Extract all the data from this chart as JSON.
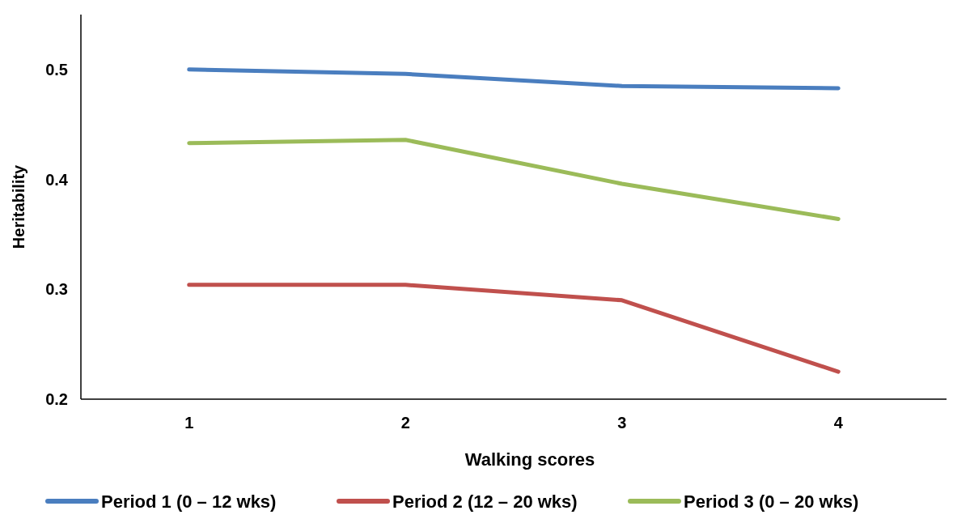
{
  "chart_data": {
    "type": "line",
    "xlabel": "Walking scores",
    "ylabel": "Heritability",
    "categories": [
      "1",
      "2",
      "3",
      "4"
    ],
    "series": [
      {
        "name": "Period 1 (0 – 12 wks)",
        "color": "#4a7ebf",
        "values": [
          0.5,
          0.496,
          0.485,
          0.483
        ]
      },
      {
        "name": "Period 2 (12 – 20 wks)",
        "color": "#c0504d",
        "values": [
          0.304,
          0.304,
          0.29,
          0.225
        ]
      },
      {
        "name": "Period 3 (0 – 20 wks)",
        "color": "#9bbb59",
        "values": [
          0.433,
          0.436,
          0.396,
          0.364
        ]
      }
    ],
    "ylim": [
      0.2,
      0.55
    ],
    "yticks": [
      0.2,
      0.3,
      0.4,
      0.5
    ],
    "grid": false,
    "legend": "bottom",
    "marker": "none",
    "line_style": "solid"
  }
}
